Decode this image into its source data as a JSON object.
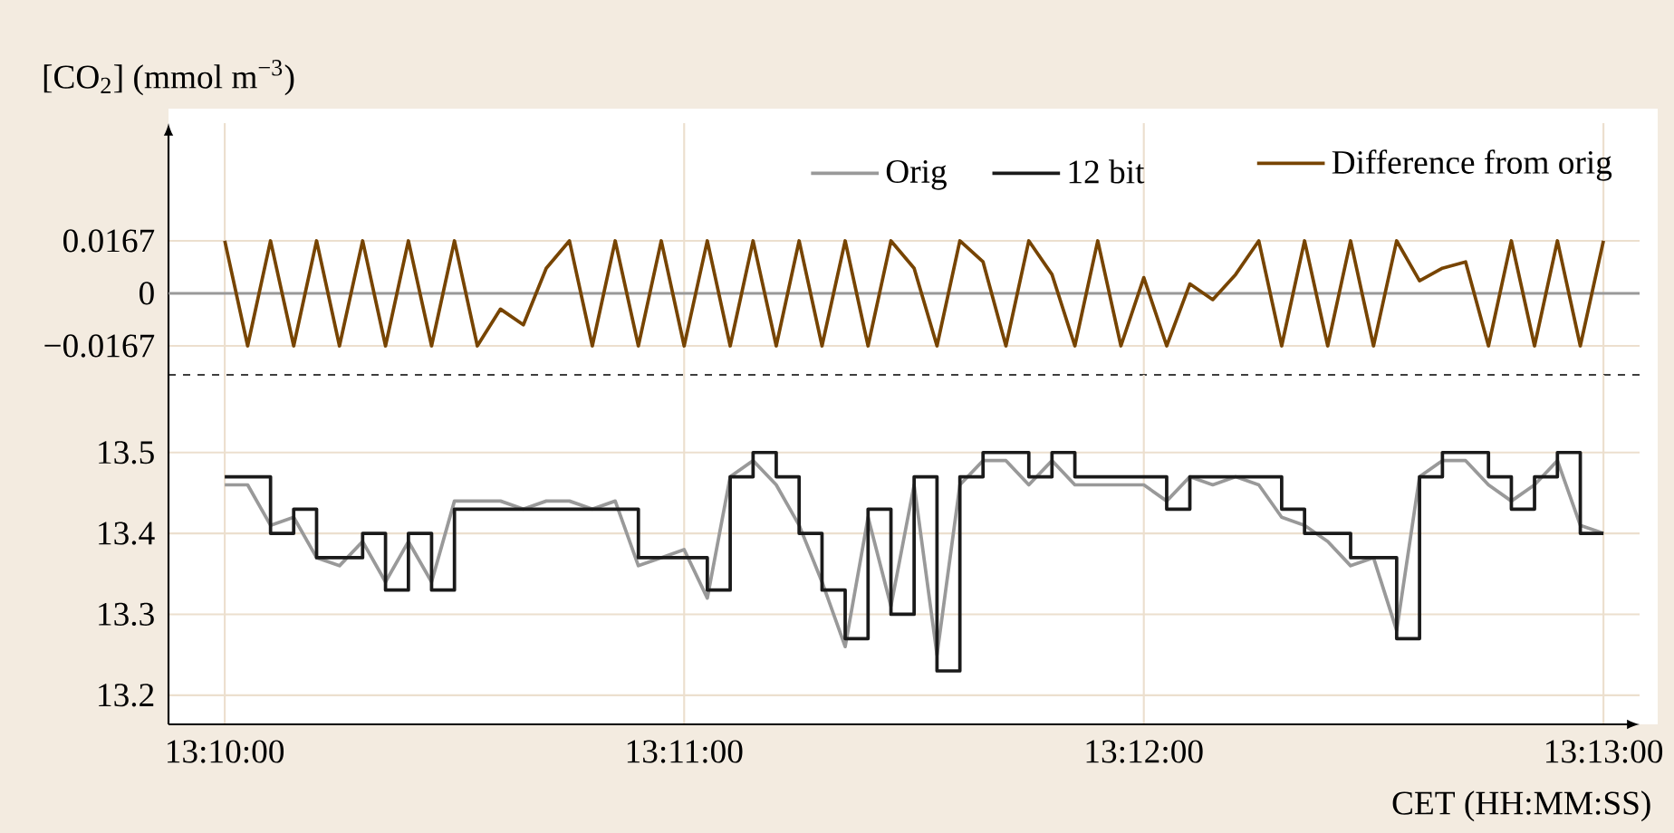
{
  "chart_data": [
    {
      "type": "line",
      "ylabel": "[CO$_{2}$] (mmol m$^{−3}$)",
      "xlim": [
        13.16463,
        13.21798
      ],
      "ylim": [
        -0.0259,
        0.0541
      ],
      "xticks": [
        {
          "value": 13.16667,
          "label": null
        },
        {
          "value": 13.18333,
          "label": null
        },
        {
          "value": 13.2,
          "label": null
        },
        {
          "value": 13.21667,
          "label": null
        }
      ],
      "yticks": [
        {
          "value": -0.0167,
          "label": "−0.0167"
        },
        0,
        0.0167
      ],
      "tick_labels": "y",
      "grid": true,
      "legend": "top right",
      "ref_lines": [
        {
          "axis": "y",
          "value": 0,
          "color": "#999999"
        }
      ],
      "x": [
        13.16667,
        13.1675,
        13.16833,
        13.16917,
        13.17,
        13.17083,
        13.17167,
        13.1725,
        13.17333,
        13.17417,
        13.175,
        13.17583,
        13.17667,
        13.1775,
        13.17833,
        13.17917,
        13.18,
        13.18083,
        13.18167,
        13.1825,
        13.18333,
        13.18417,
        13.185,
        13.18583,
        13.18667,
        13.1875,
        13.18833,
        13.18917,
        13.19,
        13.19083,
        13.19167,
        13.1925,
        13.19333,
        13.19417,
        13.195,
        13.19583,
        13.19667,
        13.1975,
        13.19833,
        13.19917,
        13.2,
        13.20083,
        13.20167,
        13.2025,
        13.20333,
        13.20417,
        13.205,
        13.20583,
        13.20667,
        13.2075,
        13.20833,
        13.20917,
        13.21,
        13.21083,
        13.21167,
        13.2125,
        13.21333,
        13.21417,
        13.215,
        13.21583,
        13.21667
      ],
      "series": [
        {
          "name": "Difference from orig",
          "color": "#774400",
          "values": [
            0.0167,
            -0.0167,
            0.0167,
            -0.0167,
            0.0167,
            -0.0167,
            0.0167,
            -0.0167,
            0.0167,
            -0.0167,
            0.0167,
            -0.0167,
            -0.005,
            -0.01,
            0.008,
            0.0167,
            -0.0167,
            0.0167,
            -0.0167,
            0.0167,
            -0.0167,
            0.0167,
            -0.0167,
            0.0167,
            -0.0167,
            0.0167,
            -0.0167,
            0.0167,
            -0.0167,
            0.0167,
            0.008,
            -0.0167,
            0.0167,
            0.01,
            -0.0167,
            0.0167,
            0.006,
            -0.0167,
            0.0167,
            -0.0167,
            0.005,
            -0.0167,
            0.003,
            -0.002,
            0.006,
            0.0167,
            -0.0167,
            0.0167,
            -0.0167,
            0.0167,
            -0.0167,
            0.0167,
            0.004,
            0.008,
            0.01,
            -0.0167,
            0.0167,
            -0.0167,
            0.0167,
            -0.0167,
            0.0167
          ]
        }
      ]
    },
    {
      "type": "line",
      "xlabel": "CET (HH:MM:SS)",
      "xlim": [
        13.16463,
        13.21798
      ],
      "ylim": [
        13.164,
        13.596
      ],
      "xticks": [
        {
          "value": 13.16667,
          "label": "13:10:00"
        },
        {
          "value": 13.18333,
          "label": "13:11:00"
        },
        {
          "value": 13.2,
          "label": "13:12:00"
        },
        {
          "value": 13.21667,
          "label": "13:13:00"
        }
      ],
      "yticks": [
        13.2,
        13.3,
        13.4,
        13.5
      ],
      "grid": true,
      "legend": "top right",
      "x": [
        13.16667,
        13.1675,
        13.16833,
        13.16917,
        13.17,
        13.17083,
        13.17167,
        13.1725,
        13.17333,
        13.17417,
        13.175,
        13.17583,
        13.17667,
        13.1775,
        13.17833,
        13.17917,
        13.18,
        13.18083,
        13.18167,
        13.1825,
        13.18333,
        13.18417,
        13.185,
        13.18583,
        13.18667,
        13.1875,
        13.18833,
        13.18917,
        13.19,
        13.19083,
        13.19167,
        13.1925,
        13.19333,
        13.19417,
        13.195,
        13.19583,
        13.19667,
        13.1975,
        13.19833,
        13.19917,
        13.2,
        13.20083,
        13.20167,
        13.2025,
        13.20333,
        13.20417,
        13.205,
        13.20583,
        13.20667,
        13.2075,
        13.20833,
        13.20917,
        13.21,
        13.21083,
        13.21167,
        13.2125,
        13.21333,
        13.21417,
        13.215,
        13.21583,
        13.21667
      ],
      "series": [
        {
          "name": "Orig",
          "color": "#999999",
          "values": [
            13.46,
            13.46,
            13.41,
            13.42,
            13.37,
            13.36,
            13.39,
            13.34,
            13.39,
            13.34,
            13.44,
            13.44,
            13.44,
            13.43,
            13.44,
            13.44,
            13.43,
            13.44,
            13.36,
            13.37,
            13.38,
            13.32,
            13.47,
            13.49,
            13.46,
            13.41,
            13.34,
            13.26,
            13.42,
            13.31,
            13.46,
            13.25,
            13.46,
            13.49,
            13.49,
            13.46,
            13.49,
            13.46,
            13.46,
            13.46,
            13.46,
            13.44,
            13.47,
            13.46,
            13.47,
            13.46,
            13.42,
            13.41,
            13.39,
            13.36,
            13.37,
            13.28,
            13.47,
            13.49,
            13.49,
            13.46,
            13.44,
            13.46,
            13.49,
            13.41,
            13.4
          ]
        },
        {
          "name": "12 bit",
          "color": "#1a1a1a",
          "type": "step",
          "values": [
            13.47,
            13.47,
            13.4,
            13.43,
            13.37,
            13.37,
            13.4,
            13.33,
            13.4,
            13.33,
            13.43,
            13.43,
            13.43,
            13.43,
            13.43,
            13.43,
            13.43,
            13.43,
            13.37,
            13.37,
            13.37,
            13.33,
            13.47,
            13.5,
            13.47,
            13.4,
            13.33,
            13.27,
            13.43,
            13.3,
            13.47,
            13.23,
            13.47,
            13.5,
            13.5,
            13.47,
            13.5,
            13.47,
            13.47,
            13.47,
            13.47,
            13.43,
            13.47,
            13.47,
            13.47,
            13.47,
            13.43,
            13.4,
            13.4,
            13.37,
            13.37,
            13.27,
            13.47,
            13.5,
            13.5,
            13.47,
            13.43,
            13.47,
            13.5,
            13.4,
            13.4
          ]
        }
      ]
    }
  ]
}
